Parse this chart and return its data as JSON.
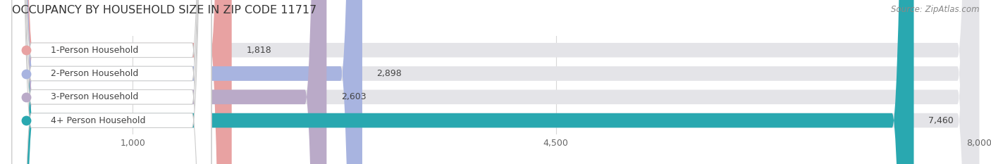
{
  "title": "OCCUPANCY BY HOUSEHOLD SIZE IN ZIP CODE 11717",
  "source": "Source: ZipAtlas.com",
  "categories": [
    "1-Person Household",
    "2-Person Household",
    "3-Person Household",
    "4+ Person Household"
  ],
  "values": [
    1818,
    2898,
    2603,
    7460
  ],
  "bar_colors": [
    "#e8a2a2",
    "#a8b4e0",
    "#baaac8",
    "#29a8b0"
  ],
  "bar_bg_color": "#e4e4e8",
  "xlim_start": 0,
  "xlim_end": 8000,
  "xticks": [
    1000,
    4500,
    8000
  ],
  "xtick_labels": [
    "1,000",
    "4,500",
    "8,000"
  ],
  "value_labels": [
    "1,818",
    "2,898",
    "2,603",
    "7,460"
  ],
  "title_fontsize": 11.5,
  "source_fontsize": 8.5,
  "label_fontsize": 9,
  "value_fontsize": 9,
  "tick_fontsize": 9,
  "background_color": "#ffffff",
  "label_bg_color": "#ffffff",
  "grid_color": "#d8d8d8",
  "label_text_color": "#444444",
  "value_text_color": "#444444",
  "title_color": "#333333"
}
